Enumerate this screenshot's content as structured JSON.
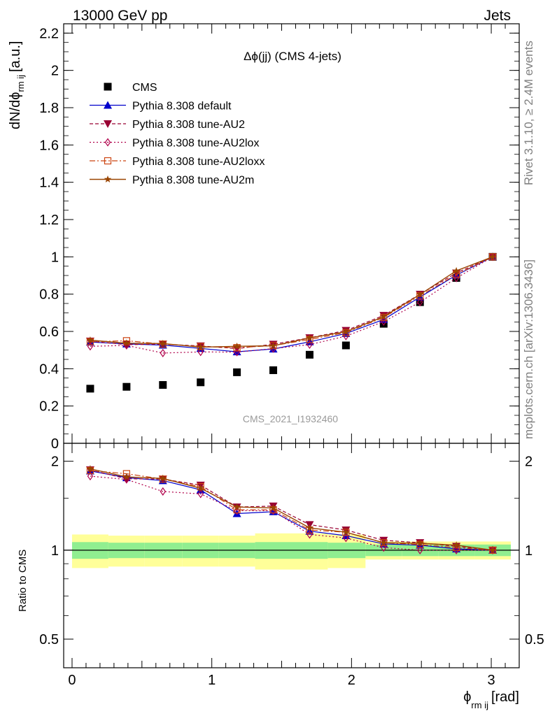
{
  "header": {
    "left": "13000 GeV pp",
    "right": "Jets"
  },
  "side_labels": {
    "rivet": "Rivet 3.1.10, ≥ 2.4M events",
    "mcplots": "mcplots.cern.ch [arXiv:1306.3436]"
  },
  "watermark": "CMS_2021_I1932460",
  "colors": {
    "cms": "#000000",
    "default": "#0000cc",
    "au2": "#990033",
    "au2lox": "#b0004a",
    "au2loxx": "#cc4411",
    "au2m": "#994400",
    "band_inner": "#90ee90",
    "band_outer": "#ffff99"
  },
  "chart_data": [
    {
      "type": "line",
      "panel": "main",
      "title": "Δϕ(jj) (CMS 4-jets)",
      "ylabel_main": "dN/dϕ",
      "ylabel_sub": "rm ij",
      "ylabel_unit": "[a.u.]",
      "ylim": [
        0,
        2.25
      ],
      "xlim": [
        -0.06,
        3.2
      ],
      "yticks": [
        0,
        0.2,
        0.4,
        0.6,
        0.8,
        1,
        1.2,
        1.4,
        1.6,
        1.8,
        2,
        2.2
      ],
      "ytick_labels": [
        "0",
        "0.2",
        "0.4",
        "0.6",
        "0.8",
        "1",
        "1.2",
        "1.4",
        "1.6",
        "1.8",
        "2",
        "2.2"
      ],
      "x": [
        0.13,
        0.39,
        0.65,
        0.92,
        1.18,
        1.44,
        1.7,
        1.96,
        2.23,
        2.49,
        2.75,
        3.01
      ],
      "series": [
        {
          "name": "CMS",
          "key": "cms",
          "values": [
            0.293,
            0.303,
            0.313,
            0.327,
            0.381,
            0.392,
            0.475,
            0.525,
            0.641,
            0.757,
            0.887,
            1.0
          ]
        },
        {
          "name": "Pythia 8.308 default",
          "key": "default",
          "values": [
            0.543,
            0.533,
            0.527,
            0.509,
            0.491,
            0.506,
            0.544,
            0.589,
            0.664,
            0.784,
            0.902,
            1.0
          ]
        },
        {
          "name": "Pythia 8.308 tune-AU2",
          "key": "au2",
          "values": [
            0.548,
            0.529,
            0.532,
            0.522,
            0.508,
            0.531,
            0.566,
            0.605,
            0.686,
            0.799,
            0.913,
            1.0
          ]
        },
        {
          "name": "Pythia 8.308 tune-AU2lox",
          "key": "au2lox",
          "values": [
            0.52,
            0.525,
            0.484,
            0.49,
            0.489,
            0.508,
            0.529,
            0.575,
            0.653,
            0.757,
            0.886,
            1.0
          ]
        },
        {
          "name": "Pythia 8.308 tune-AU2loxx",
          "key": "au2loxx",
          "values": [
            0.545,
            0.55,
            0.532,
            0.519,
            0.513,
            0.524,
            0.557,
            0.594,
            0.675,
            0.791,
            0.905,
            1.0
          ]
        },
        {
          "name": "Pythia 8.308 tune-AU2m",
          "key": "au2m",
          "values": [
            0.553,
            0.537,
            0.535,
            0.516,
            0.52,
            0.523,
            0.565,
            0.598,
            0.679,
            0.798,
            0.925,
            1.0
          ]
        }
      ]
    },
    {
      "type": "line",
      "panel": "ratio",
      "ylabel": "Ratio to CMS",
      "xlabel_main": "ϕ",
      "xlabel_sub": "rm ij",
      "xlabel_unit": "[rad]",
      "yscale": "log",
      "ylim": [
        0.4,
        2.3
      ],
      "xlim": [
        -0.06,
        3.2
      ],
      "yticks": [
        0.5,
        1,
        2
      ],
      "ytick_labels": [
        "0.5",
        "1",
        "2"
      ],
      "xticks": [
        0,
        1,
        2,
        3
      ],
      "xtick_labels": [
        "0",
        "1",
        "2",
        "3"
      ],
      "x": [
        0.13,
        0.39,
        0.65,
        0.92,
        1.18,
        1.44,
        1.7,
        1.96,
        2.23,
        2.49,
        2.75,
        3.01
      ],
      "band_edges": [
        0.0,
        0.26,
        0.52,
        0.79,
        1.05,
        1.31,
        1.57,
        1.83,
        2.1,
        2.36,
        2.62,
        2.88,
        3.14
      ],
      "band_inner": [
        0.065,
        0.06,
        0.06,
        0.06,
        0.06,
        0.065,
        0.065,
        0.06,
        0.045,
        0.045,
        0.045,
        0.045
      ],
      "band_outer": [
        0.13,
        0.12,
        0.12,
        0.12,
        0.12,
        0.14,
        0.14,
        0.13,
        0.07,
        0.07,
        0.07,
        0.07
      ],
      "series": [
        {
          "name": "Pythia 8.308 default",
          "key": "default",
          "values": [
            1.855,
            1.76,
            1.72,
            1.6,
            1.33,
            1.35,
            1.16,
            1.12,
            1.05,
            1.04,
            1.01,
            1.0
          ]
        },
        {
          "name": "Pythia 8.308 tune-AU2",
          "key": "au2",
          "values": [
            1.87,
            1.745,
            1.74,
            1.66,
            1.4,
            1.41,
            1.22,
            1.17,
            1.08,
            1.06,
            1.03,
            1.0
          ]
        },
        {
          "name": "Pythia 8.308 tune-AU2lox",
          "key": "au2lox",
          "values": [
            1.78,
            1.735,
            1.58,
            1.55,
            1.36,
            1.36,
            1.13,
            1.1,
            1.02,
            1.0,
            1.0,
            1.0
          ]
        },
        {
          "name": "Pythia 8.308 tune-AU2loxx",
          "key": "au2loxx",
          "values": [
            1.86,
            1.815,
            1.74,
            1.64,
            1.37,
            1.37,
            1.17,
            1.15,
            1.06,
            1.045,
            1.02,
            1.0
          ]
        },
        {
          "name": "Pythia 8.308 tune-AU2m",
          "key": "au2m",
          "values": [
            1.885,
            1.77,
            1.75,
            1.62,
            1.4,
            1.39,
            1.19,
            1.15,
            1.06,
            1.055,
            1.04,
            1.0
          ]
        }
      ]
    }
  ]
}
